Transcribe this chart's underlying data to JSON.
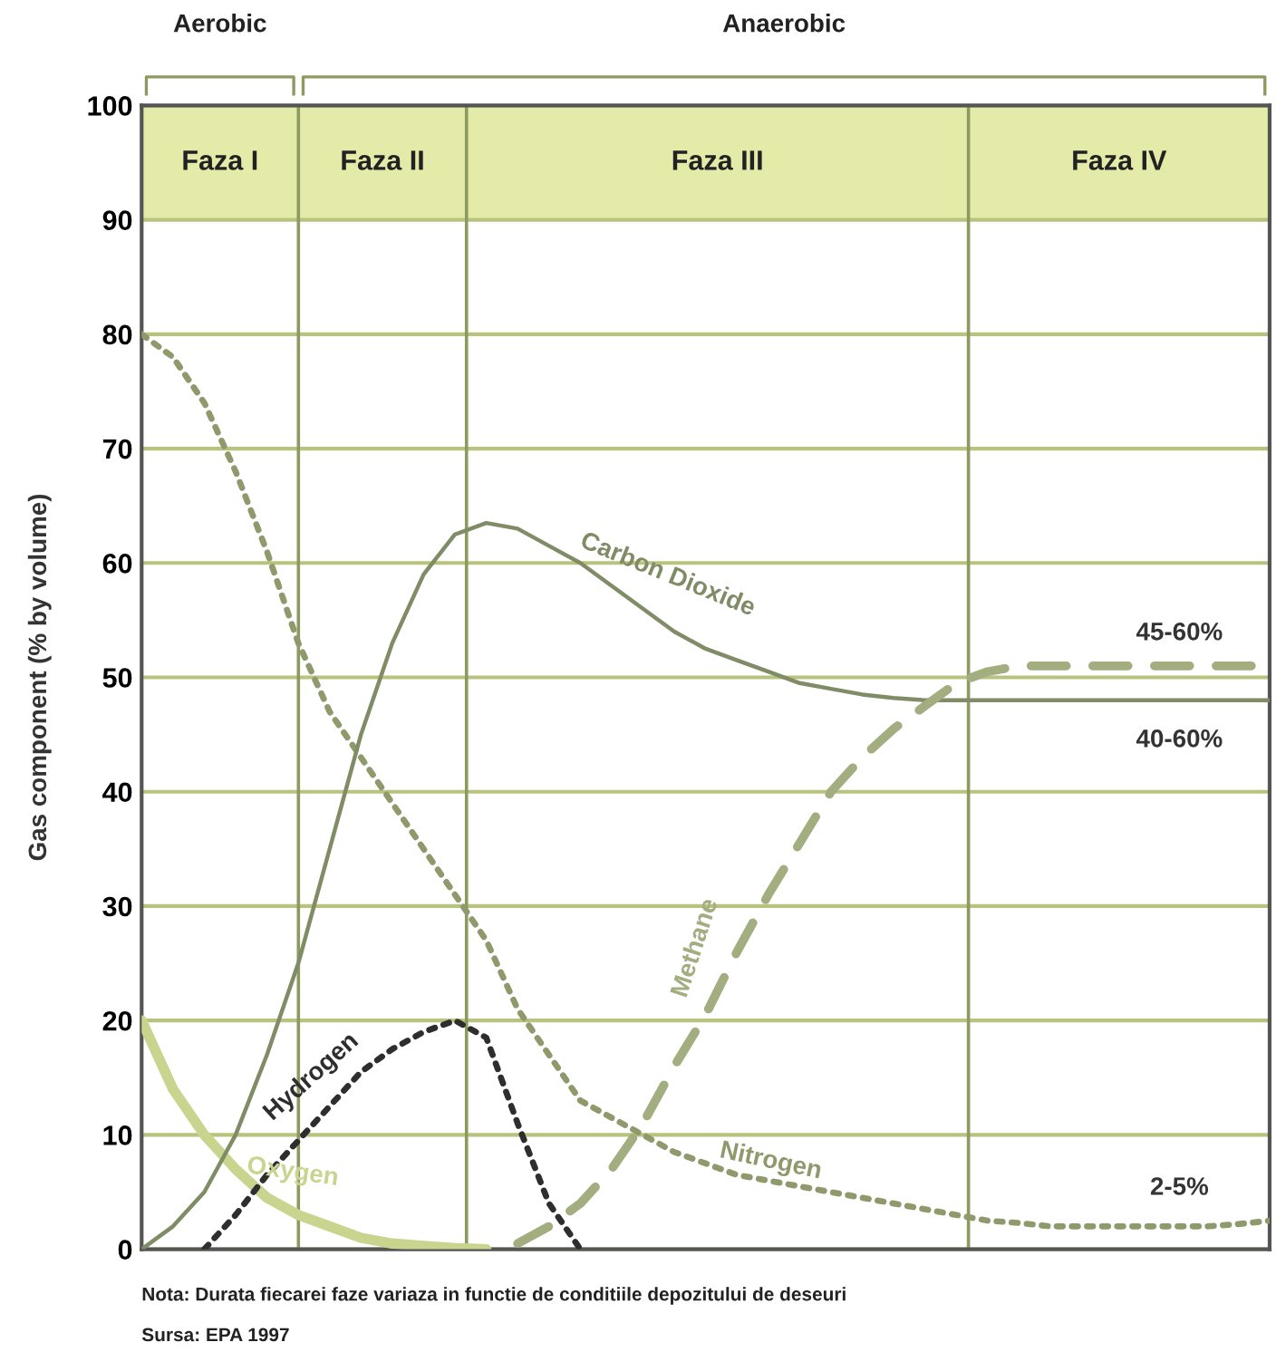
{
  "chart_data": {
    "type": "line",
    "ylabel": "Gas component (% by volume)",
    "categories": [
      null,
      null,
      null,
      null,
      null,
      null,
      null,
      null,
      null,
      null,
      null,
      null,
      null,
      null,
      null,
      null,
      null,
      null,
      null,
      null,
      null,
      null,
      null,
      null,
      null,
      null,
      null,
      null,
      null,
      null,
      null,
      null,
      null,
      null,
      null,
      null,
      null
    ],
    "ylim": [
      0,
      100
    ],
    "yticks": [
      0,
      10,
      20,
      30,
      40,
      50,
      60,
      70,
      80,
      90,
      100
    ],
    "grid": "y",
    "legend": false,
    "marker": "none",
    "series": [
      {
        "name": "Nitrogen",
        "color": "#8f9a6c",
        "line_style": "dotted",
        "values": [
          80,
          78,
          74,
          68,
          61,
          53,
          47,
          43,
          39,
          35,
          31,
          27,
          21,
          17,
          13,
          11.5,
          10,
          8.5,
          7.5,
          6.5,
          6,
          5.5,
          5,
          4.5,
          4,
          3.5,
          3,
          2.5,
          2.3,
          2,
          2,
          2,
          2,
          2,
          2,
          2.2,
          2.5
        ]
      },
      {
        "name": "Oxygen",
        "color": "#c9d48e",
        "line_style": "solid",
        "values": [
          20,
          14,
          10,
          7,
          4.5,
          3,
          2,
          1,
          0.5,
          0.3,
          0.1,
          0,
          null,
          null,
          null,
          null,
          null,
          null,
          null,
          null,
          null,
          null,
          null,
          null,
          null,
          null,
          null,
          null,
          null,
          null,
          null,
          null,
          null,
          null,
          null,
          null,
          null
        ]
      },
      {
        "name": "Hydrogen",
        "color": "#2e2e2e",
        "line_style": "dotted",
        "values": [
          null,
          null,
          0,
          3,
          6.5,
          9.5,
          12.5,
          15.5,
          17.5,
          19,
          20,
          18.5,
          11,
          4,
          0,
          null,
          null,
          null,
          null,
          null,
          null,
          null,
          null,
          null,
          null,
          null,
          null,
          null,
          null,
          null,
          null,
          null,
          null,
          null,
          null,
          null,
          null
        ]
      },
      {
        "name": "Carbon Dioxide",
        "color": "#7f8c66",
        "line_style": "solid",
        "values": [
          0,
          2,
          5,
          10,
          17,
          25,
          35,
          45,
          53,
          59,
          62.5,
          63.5,
          63,
          61.5,
          60,
          58,
          56,
          54,
          52.5,
          51.5,
          50.5,
          49.5,
          49,
          48.5,
          48.2,
          48,
          48,
          48,
          48,
          48,
          48,
          48,
          48,
          48,
          48,
          48,
          48
        ]
      },
      {
        "name": "Methane",
        "color": "#a2ad80",
        "line_style": "dashed",
        "values": [
          null,
          null,
          null,
          null,
          null,
          null,
          null,
          null,
          null,
          null,
          null,
          null,
          0.5,
          2,
          4,
          7,
          11,
          16,
          20.5,
          26,
          31,
          35.5,
          40,
          43,
          45.5,
          47.5,
          49.5,
          50.5,
          51,
          51,
          51,
          51,
          51,
          51,
          51,
          51,
          51
        ]
      }
    ],
    "annotations": [
      "Aerobic",
      "Anaerobic",
      "Faza I",
      "Faza II",
      "Faza III",
      "Faza IV",
      {
        "text": "45-60%",
        "y": 51
      },
      {
        "text": "40-60%",
        "y": 48
      },
      {
        "text": "2-5%",
        "y": 2.5
      },
      "Nota: Durata fiecarei faze variaza in functie de conditiile depozitului de deseuri",
      "Sursa: EPA 1997"
    ]
  }
}
